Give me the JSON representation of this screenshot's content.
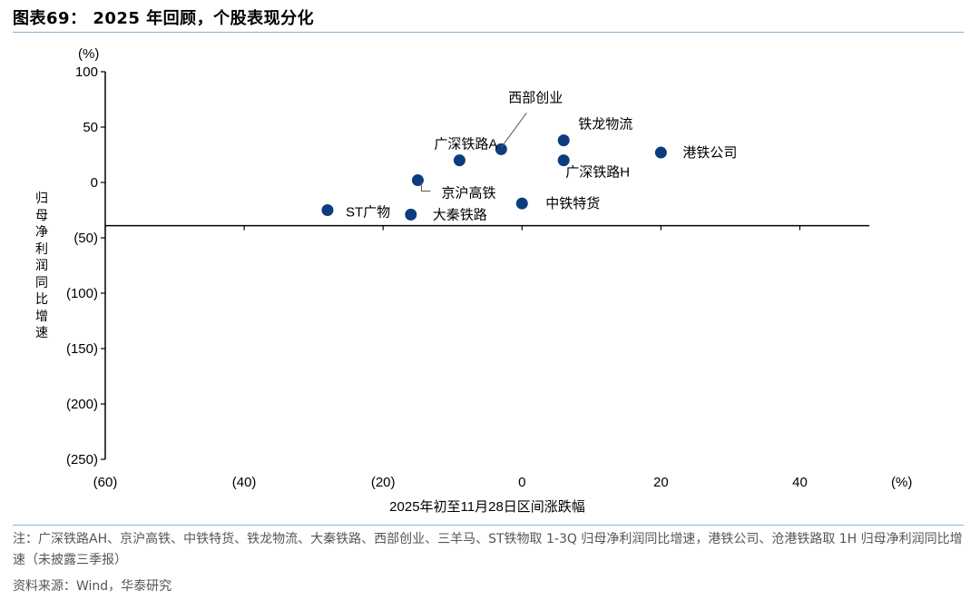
{
  "header": {
    "title": "图表69：  2025 年回顾，个股表现分化"
  },
  "chart_data": {
    "type": "scatter",
    "xlabel": "2025年初至11月28日区间涨跌幅",
    "ylabel": "归母净利润同比增速",
    "x_unit": "(%)",
    "y_unit": "(%)",
    "xlim": [
      -60,
      50
    ],
    "ylim": [
      -250,
      100
    ],
    "x_ticks": [
      -60,
      -40,
      -20,
      0,
      20,
      40
    ],
    "x_tick_labels": [
      "(60)",
      "(40)",
      "(20)",
      "0",
      "20",
      "40"
    ],
    "y_ticks": [
      100,
      50,
      0,
      -50,
      -100,
      -150,
      -200,
      -250
    ],
    "y_tick_labels": [
      "100",
      "50",
      "0",
      "(50)",
      "(100)",
      "(150)",
      "(200)",
      "(250)"
    ],
    "x_axis_at_y": -39,
    "marker_color": "#0b3d7e",
    "points": [
      {
        "label": "西部创业",
        "x": -3,
        "y": 30
      },
      {
        "label": "广深铁路A",
        "x": -9,
        "y": 20
      },
      {
        "label": "铁龙物流",
        "x": 6,
        "y": 38
      },
      {
        "label": "港铁公司",
        "x": 20,
        "y": 27
      },
      {
        "label": "广深铁路H",
        "x": 6,
        "y": 20
      },
      {
        "label": "京沪高铁",
        "x": -15,
        "y": 2
      },
      {
        "label": "中铁特货",
        "x": 0,
        "y": -19
      },
      {
        "label": "ST广物",
        "x": -28,
        "y": -25
      },
      {
        "label": "大秦铁路",
        "x": -16,
        "y": -29
      }
    ]
  },
  "footer": {
    "note": "注：广深铁路AH、京沪高铁、中铁特货、铁龙物流、大秦铁路、西部创业、三羊马、ST铁物取 1-3Q 归母净利润同比增速，港铁公司、沧港铁路取 1H 归母净利润同比增速（未披露三季报）",
    "source": "资料来源：Wind，华泰研究"
  }
}
